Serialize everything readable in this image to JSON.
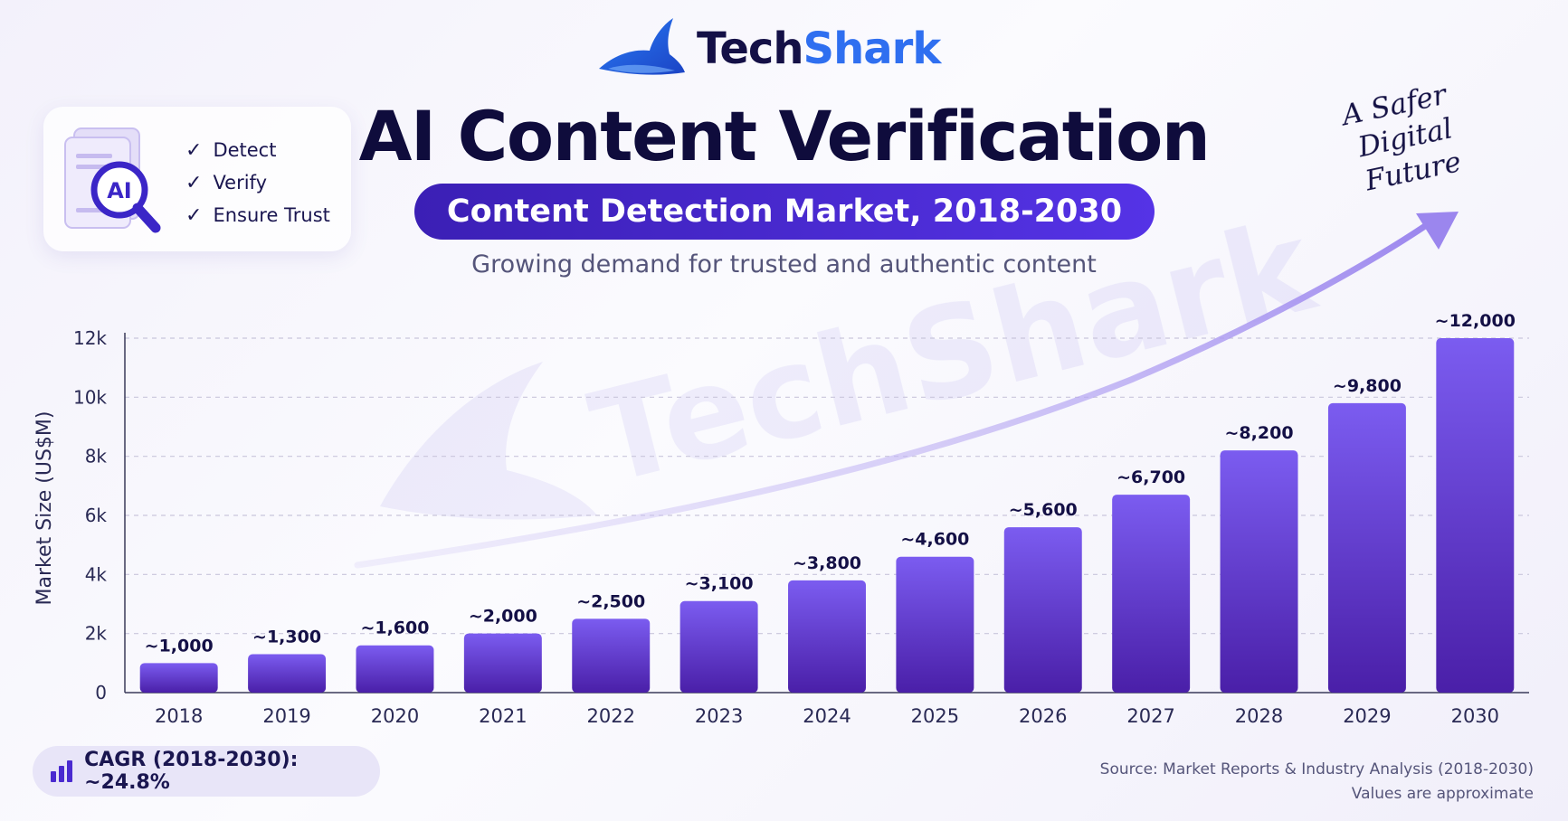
{
  "brand": {
    "part1": "Tech",
    "part2": "Shark",
    "watermark": "TechShark"
  },
  "title": "AI Content Verification",
  "subtitle": "Content Detection Market, 2018-2030",
  "tagline": "Growing demand for trusted and authentic content",
  "features": {
    "icon_label": "AI",
    "items": [
      "Detect",
      "Verify",
      "Ensure Trust"
    ]
  },
  "annotation": {
    "line1": "A Safer",
    "line2": "Digital Future"
  },
  "cagr": "CAGR (2018-2030): ~24.8%",
  "source": {
    "line1": "Source: Market Reports & Industry Analysis (2018-2030)",
    "line2": "Values are approximate"
  },
  "colors": {
    "bar_top": "#7b5cf0",
    "bar_bottom": "#4a1fa8",
    "accent": "#4a2ad0",
    "arrow": "#9b86ee"
  },
  "chart_data": {
    "type": "bar",
    "categories": [
      "2018",
      "2019",
      "2020",
      "2021",
      "2022",
      "2023",
      "2024",
      "2025",
      "2026",
      "2027",
      "2028",
      "2029",
      "2030"
    ],
    "values": [
      1000,
      1300,
      1600,
      2000,
      2500,
      3100,
      3800,
      4600,
      5600,
      6700,
      8200,
      9800,
      12000
    ],
    "data_labels": [
      "~1,000",
      "~1,300",
      "~1,600",
      "~2,000",
      "~2,500",
      "~3,100",
      "~3,800",
      "~4,600",
      "~5,600",
      "~6,700",
      "~8,200",
      "~9,800",
      "~12,000"
    ],
    "ylabel": "Market Size (US$M)",
    "ylim": [
      0,
      12000
    ],
    "y_ticks": [
      0,
      2000,
      4000,
      6000,
      8000,
      10000,
      12000
    ],
    "y_tick_labels": [
      "0",
      "2k",
      "4k",
      "6k",
      "8k",
      "10k",
      "12k"
    ],
    "grid": true
  }
}
